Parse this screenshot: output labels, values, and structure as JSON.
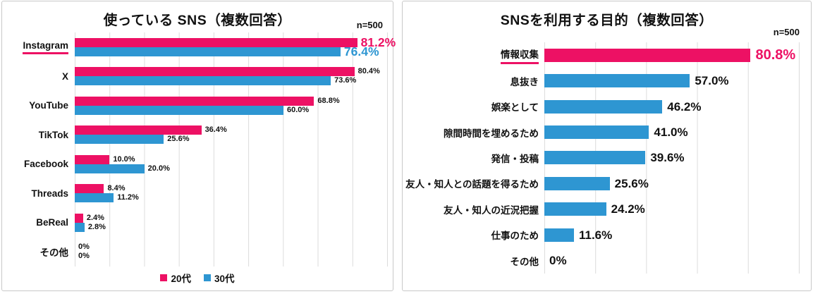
{
  "colors": {
    "pink": "#ED1164",
    "blue": "#2E96D2",
    "grid": "#DCDCDC",
    "border": "#C8C8C8",
    "text": "#1A1A1A"
  },
  "chart_data": [
    {
      "type": "bar",
      "orientation": "horizontal",
      "title": "使っている SNS（複数回答）",
      "sample_label": "n=500",
      "categories": [
        "Instagram",
        "X",
        "YouTube",
        "TikTok",
        "Facebook",
        "Threads",
        "BeReal",
        "その他"
      ],
      "series": [
        {
          "name": "20代",
          "color_key": "pink",
          "values": [
            81.2,
            80.4,
            68.8,
            36.4,
            10.0,
            8.4,
            2.4,
            0
          ],
          "labels": [
            "81.2%",
            "80.4%",
            "68.8%",
            "36.4%",
            "10.0%",
            "8.4%",
            "2.4%",
            "0%"
          ]
        },
        {
          "name": "30代",
          "color_key": "blue",
          "values": [
            76.4,
            73.6,
            60.0,
            25.6,
            20.0,
            11.2,
            2.8,
            0
          ],
          "labels": [
            "76.4%",
            "73.6%",
            "60.0%",
            "25.6%",
            "20.0%",
            "11.2%",
            "2.8%",
            "0%"
          ]
        }
      ],
      "emphasized_category": "Instagram",
      "xlim": [
        0,
        90
      ],
      "gridline_step": 10,
      "grid": true,
      "legend_position": "bottom"
    },
    {
      "type": "bar",
      "orientation": "horizontal",
      "title": "SNSを利用する目的（複数回答）",
      "sample_label": "n=500",
      "categories": [
        "情報収集",
        "息抜き",
        "娯楽として",
        "隙間時間を埋めるため",
        "発信・投稿",
        "友人・知人との話題を得るため",
        "友人・知人の近況把握",
        "仕事のため",
        "その他"
      ],
      "values": [
        80.8,
        57.0,
        46.2,
        41.0,
        39.6,
        25.6,
        24.2,
        11.6,
        0
      ],
      "labels": [
        "80.8%",
        "57.0%",
        "46.2%",
        "41.0%",
        "39.6%",
        "25.6%",
        "24.2%",
        "11.6%",
        "0%"
      ],
      "emphasized_category": "情報収集",
      "xlim": [
        0,
        100
      ],
      "gridline_step": 20,
      "grid": true,
      "legend_position": "none"
    }
  ]
}
